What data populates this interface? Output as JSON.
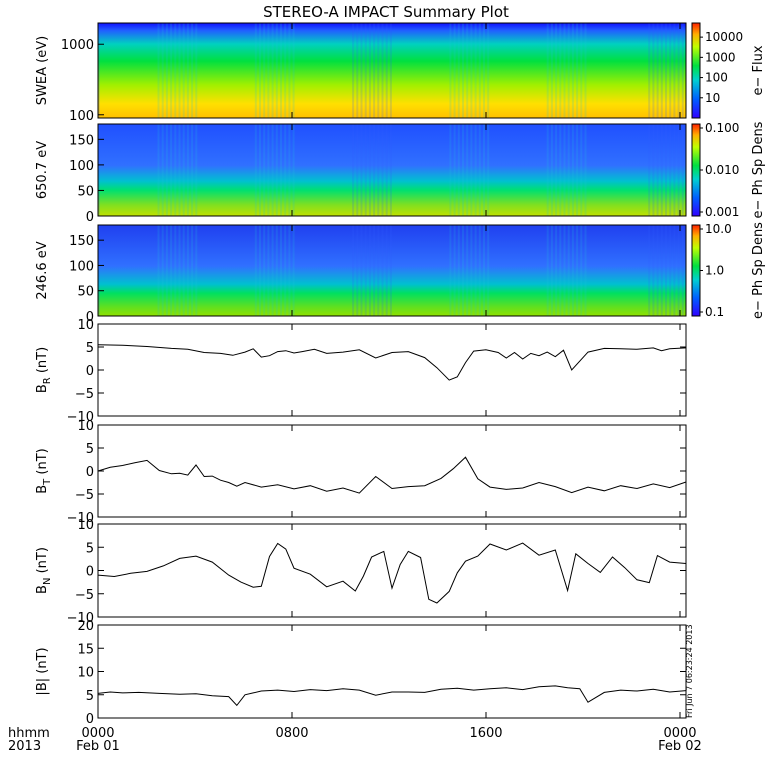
{
  "title": "STEREO-A IMPACT Summary Plot",
  "footer": {
    "hhmm_label": "hhmm",
    "year_label": "2013",
    "x_ticks": [
      "0000",
      "0800",
      "1600",
      "0000"
    ],
    "date_labels": [
      "Feb 01",
      "",
      "",
      "Feb 02"
    ]
  },
  "timestamp": "Fri Jun  7 06:23:24 2013",
  "colors": {
    "spec_low": "#2020ff",
    "spec_mid": "#00d060",
    "spec_high": "#ffd000",
    "line": "#000000"
  },
  "chart_data": [
    {
      "type": "heatmap",
      "ylabel": "SWEA (eV)",
      "ylabels": [
        "1000",
        "100"
      ],
      "ylog": true,
      "ylim": [
        90,
        2000
      ],
      "colorbar_label": "e− Flux",
      "colorbar_ticks": [
        "10000",
        "1000",
        "100",
        "10"
      ],
      "colorbar_range": [
        1,
        50000
      ]
    },
    {
      "type": "heatmap",
      "ylabel": "650.7 eV",
      "yticks": [
        "150",
        "100",
        "50",
        "0"
      ],
      "ylim": [
        0,
        180
      ],
      "colorbar_label": "e− Ph Sp Dens",
      "colorbar_ticks": [
        "0.100",
        "0.010",
        "0.001"
      ],
      "colorbar_range": [
        0.001,
        0.1
      ]
    },
    {
      "type": "heatmap",
      "ylabel": "246.6 eV",
      "yticks": [
        "150",
        "100",
        "50",
        "0"
      ],
      "ylim": [
        0,
        180
      ],
      "colorbar_label": "e− Ph Sp Dens",
      "colorbar_ticks": [
        "10.0",
        "1.0",
        "0.1"
      ],
      "colorbar_range": [
        0.1,
        10
      ]
    },
    {
      "type": "line",
      "ylabel": "B",
      "ysub": "R",
      "yunit": "(nT)",
      "yticks": [
        "10",
        "5",
        "0",
        "−5",
        "−10"
      ],
      "ylim": [
        -10,
        10
      ],
      "x": [
        0,
        60,
        120,
        180,
        220,
        260,
        300,
        330,
        360,
        380,
        400,
        420,
        440,
        460,
        480,
        500,
        530,
        560,
        600,
        640,
        680,
        720,
        760,
        800,
        830,
        860,
        880,
        900,
        920,
        950,
        980,
        1000,
        1020,
        1040,
        1060,
        1080,
        1100,
        1120,
        1140,
        1160,
        1200,
        1240,
        1280,
        1320,
        1360,
        1380,
        1400,
        1440
      ],
      "y": [
        5.5,
        5.4,
        5.1,
        4.7,
        4.5,
        3.8,
        3.6,
        3.2,
        3.9,
        4.6,
        2.8,
        3.1,
        4.0,
        4.2,
        3.7,
        4.0,
        4.5,
        3.6,
        3.9,
        4.4,
        2.6,
        3.8,
        4.0,
        2.7,
        0.5,
        -2.2,
        -1.5,
        1.6,
        4.1,
        4.4,
        3.8,
        2.6,
        3.8,
        2.4,
        3.6,
        3.1,
        3.9,
        2.9,
        4.3,
        0.0,
        3.9,
        4.7,
        4.6,
        4.5,
        4.8,
        4.2,
        4.6,
        4.8
      ]
    },
    {
      "type": "line",
      "ylabel": "B",
      "ysub": "T",
      "yunit": "(nT)",
      "yticks": [
        "10",
        "5",
        "0",
        "−5",
        "−10"
      ],
      "ylim": [
        -10,
        10
      ],
      "x": [
        0,
        30,
        60,
        90,
        120,
        150,
        180,
        200,
        220,
        240,
        260,
        280,
        300,
        320,
        340,
        360,
        400,
        440,
        480,
        520,
        560,
        600,
        640,
        680,
        720,
        760,
        800,
        840,
        870,
        900,
        930,
        960,
        1000,
        1040,
        1080,
        1120,
        1160,
        1200,
        1240,
        1280,
        1320,
        1360,
        1400,
        1440
      ],
      "y": [
        0.0,
        0.8,
        1.2,
        1.8,
        2.3,
        0.1,
        -0.6,
        -0.5,
        -0.9,
        1.3,
        -1.2,
        -1.1,
        -2.0,
        -2.5,
        -3.3,
        -2.5,
        -3.5,
        -3.0,
        -3.9,
        -3.2,
        -4.4,
        -3.7,
        -4.8,
        -1.2,
        -3.8,
        -3.4,
        -3.2,
        -1.6,
        0.5,
        3.0,
        -1.7,
        -3.5,
        -4.0,
        -3.7,
        -2.5,
        -3.4,
        -4.7,
        -3.5,
        -4.3,
        -3.2,
        -3.8,
        -2.8,
        -3.6,
        -2.4
      ]
    },
    {
      "type": "line",
      "ylabel": "B",
      "ysub": "N",
      "yunit": "(nT)",
      "yticks": [
        "10",
        "5",
        "0",
        "−5",
        "−10"
      ],
      "ylim": [
        -10,
        10
      ],
      "x": [
        0,
        40,
        80,
        120,
        160,
        200,
        240,
        280,
        320,
        350,
        380,
        400,
        420,
        440,
        460,
        480,
        520,
        560,
        600,
        630,
        650,
        670,
        700,
        720,
        740,
        760,
        790,
        810,
        830,
        860,
        880,
        900,
        930,
        960,
        1000,
        1040,
        1080,
        1120,
        1150,
        1170,
        1200,
        1230,
        1260,
        1290,
        1320,
        1350,
        1370,
        1400,
        1440
      ],
      "y": [
        -1.0,
        -1.3,
        -0.6,
        -0.2,
        1.0,
        2.6,
        3.1,
        1.8,
        -1.0,
        -2.5,
        -3.6,
        -3.4,
        3.0,
        5.8,
        4.6,
        0.5,
        -0.8,
        -3.5,
        -2.3,
        -4.4,
        -1.2,
        2.9,
        4.1,
        -3.8,
        1.3,
        4.1,
        2.8,
        -6.2,
        -7.0,
        -4.5,
        -0.5,
        2.0,
        3.1,
        5.7,
        4.4,
        5.9,
        3.3,
        4.4,
        -4.3,
        3.6,
        1.5,
        -0.4,
        2.9,
        0.6,
        -2.0,
        -2.6,
        3.2,
        1.8,
        1.5
      ]
    },
    {
      "type": "line",
      "ylabel": "|B|",
      "yunit": "(nT)",
      "yticks": [
        "20",
        "15",
        "10",
        "5",
        "0"
      ],
      "ylim": [
        0,
        20
      ],
      "x": [
        0,
        30,
        60,
        100,
        150,
        200,
        240,
        280,
        320,
        340,
        360,
        380,
        400,
        440,
        480,
        520,
        560,
        600,
        640,
        680,
        720,
        760,
        800,
        840,
        880,
        920,
        960,
        1000,
        1040,
        1080,
        1120,
        1150,
        1180,
        1200,
        1240,
        1280,
        1320,
        1360,
        1400,
        1440
      ],
      "y": [
        5.3,
        5.6,
        5.4,
        5.5,
        5.3,
        5.1,
        5.2,
        4.8,
        4.6,
        2.7,
        5.0,
        5.4,
        5.8,
        6.0,
        5.7,
        6.1,
        5.9,
        6.3,
        6.0,
        4.9,
        5.6,
        5.6,
        5.5,
        6.2,
        6.4,
        6.0,
        6.3,
        6.5,
        6.1,
        6.7,
        6.9,
        6.5,
        6.3,
        3.4,
        5.5,
        6.0,
        5.8,
        6.2,
        5.6,
        5.9
      ]
    }
  ]
}
